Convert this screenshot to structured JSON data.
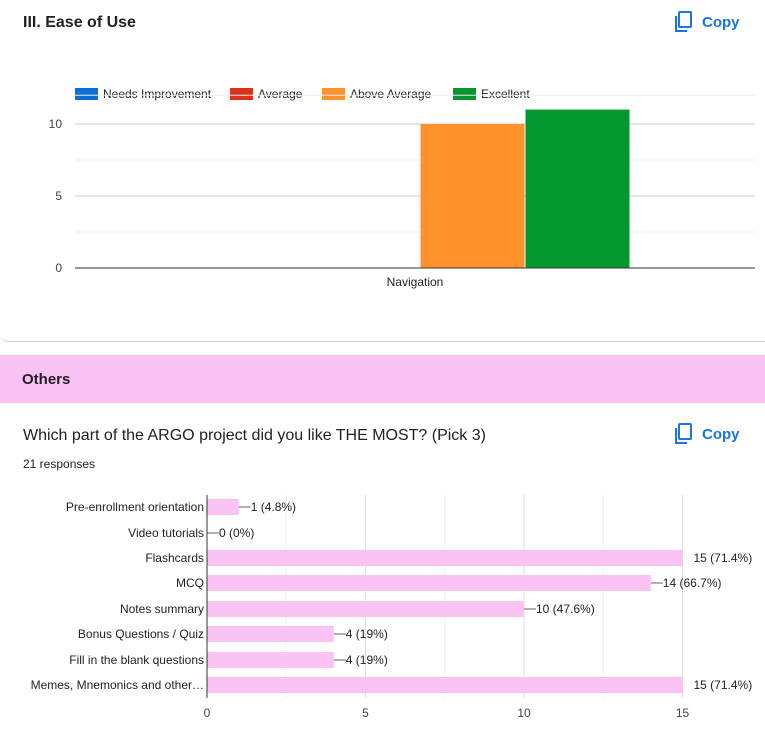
{
  "card1": {
    "title": "III. Ease of Use",
    "copy_label": "Copy"
  },
  "section": {
    "title": "Others"
  },
  "card2": {
    "question": "Which part of the ARGO project did you like THE MOST?  (Pick 3)",
    "responses": "21 responses",
    "copy_label": "Copy"
  },
  "icons": [
    "copy-icon"
  ],
  "chart_data": [
    {
      "type": "bar",
      "orientation": "vertical",
      "categories": [
        "Navigation"
      ],
      "series": [
        {
          "name": "Needs Improvement",
          "color": "#0b6ed6",
          "values": [
            0
          ]
        },
        {
          "name": "Average",
          "color": "#dc3219",
          "values": [
            0
          ]
        },
        {
          "name": "Above Average",
          "color": "#ff922b",
          "values": [
            10
          ]
        },
        {
          "name": "Excellent",
          "color": "#05962e",
          "values": [
            11
          ]
        }
      ],
      "yticks": [
        "0",
        "5",
        "10"
      ],
      "ylim": [
        0,
        12
      ],
      "legend": "top",
      "grid": true
    },
    {
      "type": "bar",
      "orientation": "horizontal",
      "color": "#fbc2f4",
      "categories": [
        "Pre-enrollment orientation",
        "Video tutorials",
        "Flashcards",
        "MCQ",
        "Notes summary",
        "Bonus Questions / Quiz",
        "Fill in the blank questions",
        "Memes, Mnemonics and other…"
      ],
      "values": [
        1,
        0,
        15,
        14,
        10,
        4,
        4,
        15
      ],
      "data_labels": [
        "1 (4.8%)",
        "0 (0%)",
        "15 (71.4%)",
        "14 (66.7%)",
        "10 (47.6%)",
        "4 (19%)",
        "4 (19%)",
        "15 (71.4%)"
      ],
      "xticks": [
        "0",
        "5",
        "10",
        "15"
      ],
      "xlim": [
        0,
        15
      ],
      "grid": true
    }
  ]
}
